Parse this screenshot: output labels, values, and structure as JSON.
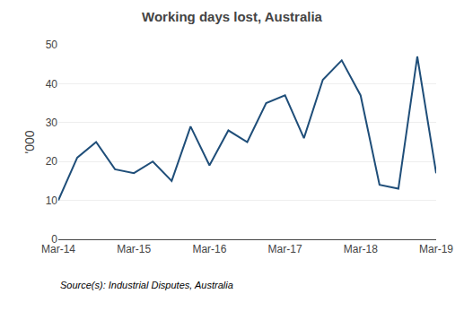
{
  "chart_data": {
    "type": "line",
    "title": "Working days lost, Australia",
    "ylabel": "'000",
    "annotations": [
      "Source(s): Industrial Disputes, Australia"
    ],
    "categories": [
      "Mar-14",
      null,
      null,
      null,
      "Mar-15",
      null,
      null,
      null,
      "Mar-16",
      null,
      null,
      null,
      "Mar-17",
      null,
      null,
      null,
      "Mar-18",
      null,
      null,
      null,
      "Mar-19"
    ],
    "values": [
      10,
      21,
      25,
      18,
      17,
      20,
      15,
      29,
      19,
      28,
      25,
      35,
      37,
      26,
      41,
      46,
      37,
      14,
      13,
      47,
      17
    ],
    "color": "#1F4E79",
    "ylim": [
      0,
      50
    ],
    "yticks": [
      0,
      10,
      20,
      30,
      40,
      50
    ],
    "grid": true
  }
}
